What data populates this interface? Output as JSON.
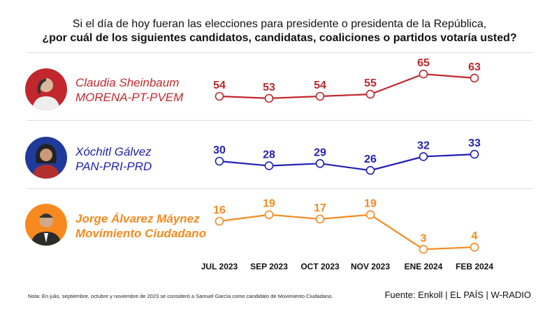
{
  "header": {
    "line1": "Si el día de hoy fueran las elecciones para presidente o presidenta de la República,",
    "line2": "¿por cuál de los siguientes candidatos, candidatas, coaliciones o partidos votaría usted?"
  },
  "chart_data": {
    "type": "line",
    "categories": [
      "JUL 2023",
      "SEP 2023",
      "OCT 2023",
      "NOV 2023",
      "ENE 2024",
      "FEB 2024"
    ],
    "series": [
      {
        "name": "Claudia Sheinbaum",
        "party": "MORENA-PT-PVEM",
        "color": "#c1272d",
        "values": [
          54,
          53,
          54,
          55,
          65,
          63
        ]
      },
      {
        "name": "Xóchitl Gálvez",
        "party": "PAN-PRI-PRD",
        "color": "#1f1fb4",
        "values": [
          30,
          28,
          29,
          26,
          32,
          33
        ]
      },
      {
        "name": "Jorge Álvarez Máynez",
        "party": "Movimiento Ciudadano",
        "color": "#f7891f",
        "values": [
          16,
          19,
          17,
          19,
          3,
          4
        ]
      }
    ],
    "grid": false,
    "data_labels": true
  },
  "footer": {
    "note": "Nota: En julio, septiembre, octubre y noviembre de 2023 se consideró a Samuel García como candidato de Movimiento Ciudadano.",
    "source": "Fuente: Enkoll | EL PAÍS | W-RADIO"
  }
}
